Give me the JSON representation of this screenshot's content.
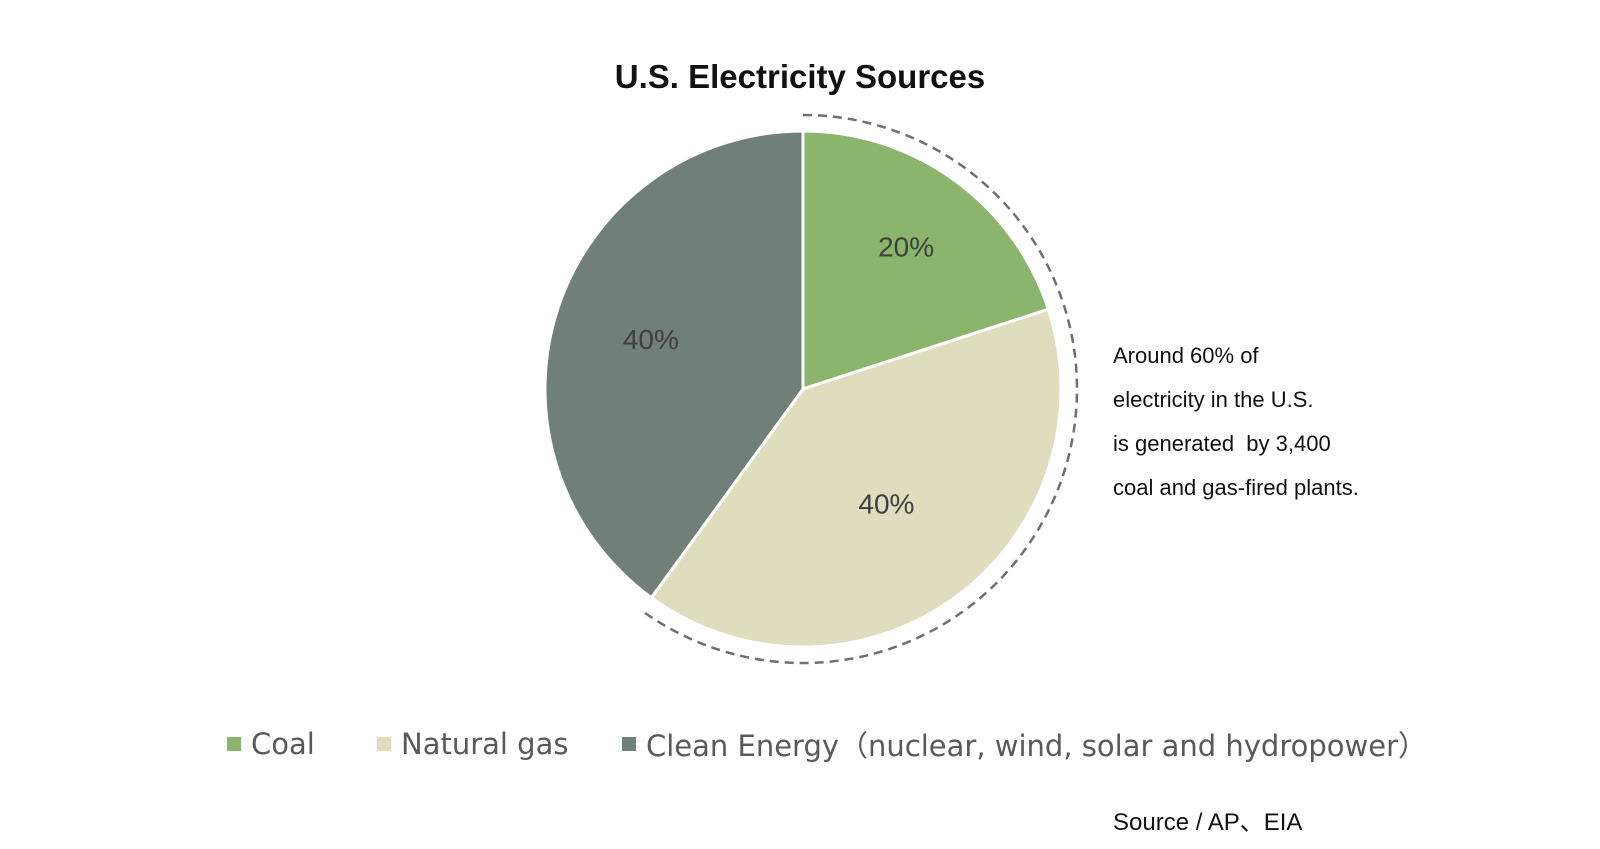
{
  "chart_data": {
    "type": "pie",
    "title": "U.S. Electricity Sources",
    "categories": [
      "Coal",
      "Natural gas",
      "Clean Energy（nuclear, wind, solar and hydropower）"
    ],
    "values": [
      20,
      40,
      40
    ],
    "value_labels": [
      "20%",
      "40%",
      "40%"
    ],
    "colors": [
      "#8bb56d",
      "#e0ddbf",
      "#707f78"
    ],
    "legend_position": "bottom",
    "annotation_lines": [
      "Around 60% of",
      "electricity in the U.S.",
      "is generated  by 3,400",
      "coal and gas-fired plants."
    ],
    "source": "Source / AP、EIA"
  }
}
